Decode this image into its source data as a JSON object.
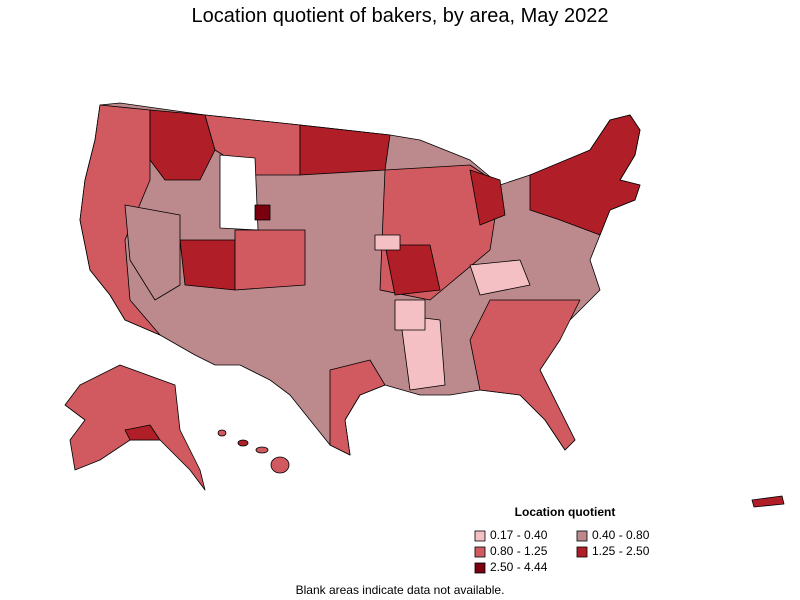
{
  "title": "Location quotient of bakers, by area, May 2022",
  "legend": {
    "title": "Location quotient",
    "items": [
      {
        "label": "0.17 - 0.40",
        "color": "#f5c0c4"
      },
      {
        "label": "0.40 - 0.80",
        "color": "#bc8a8c"
      },
      {
        "label": "0.80 - 1.25",
        "color": "#d05a60"
      },
      {
        "label": "1.25 - 2.50",
        "color": "#b01e28"
      },
      {
        "label": "2.50 - 4.44",
        "color": "#7a0010"
      }
    ]
  },
  "note": "Blank areas indicate data not available."
}
